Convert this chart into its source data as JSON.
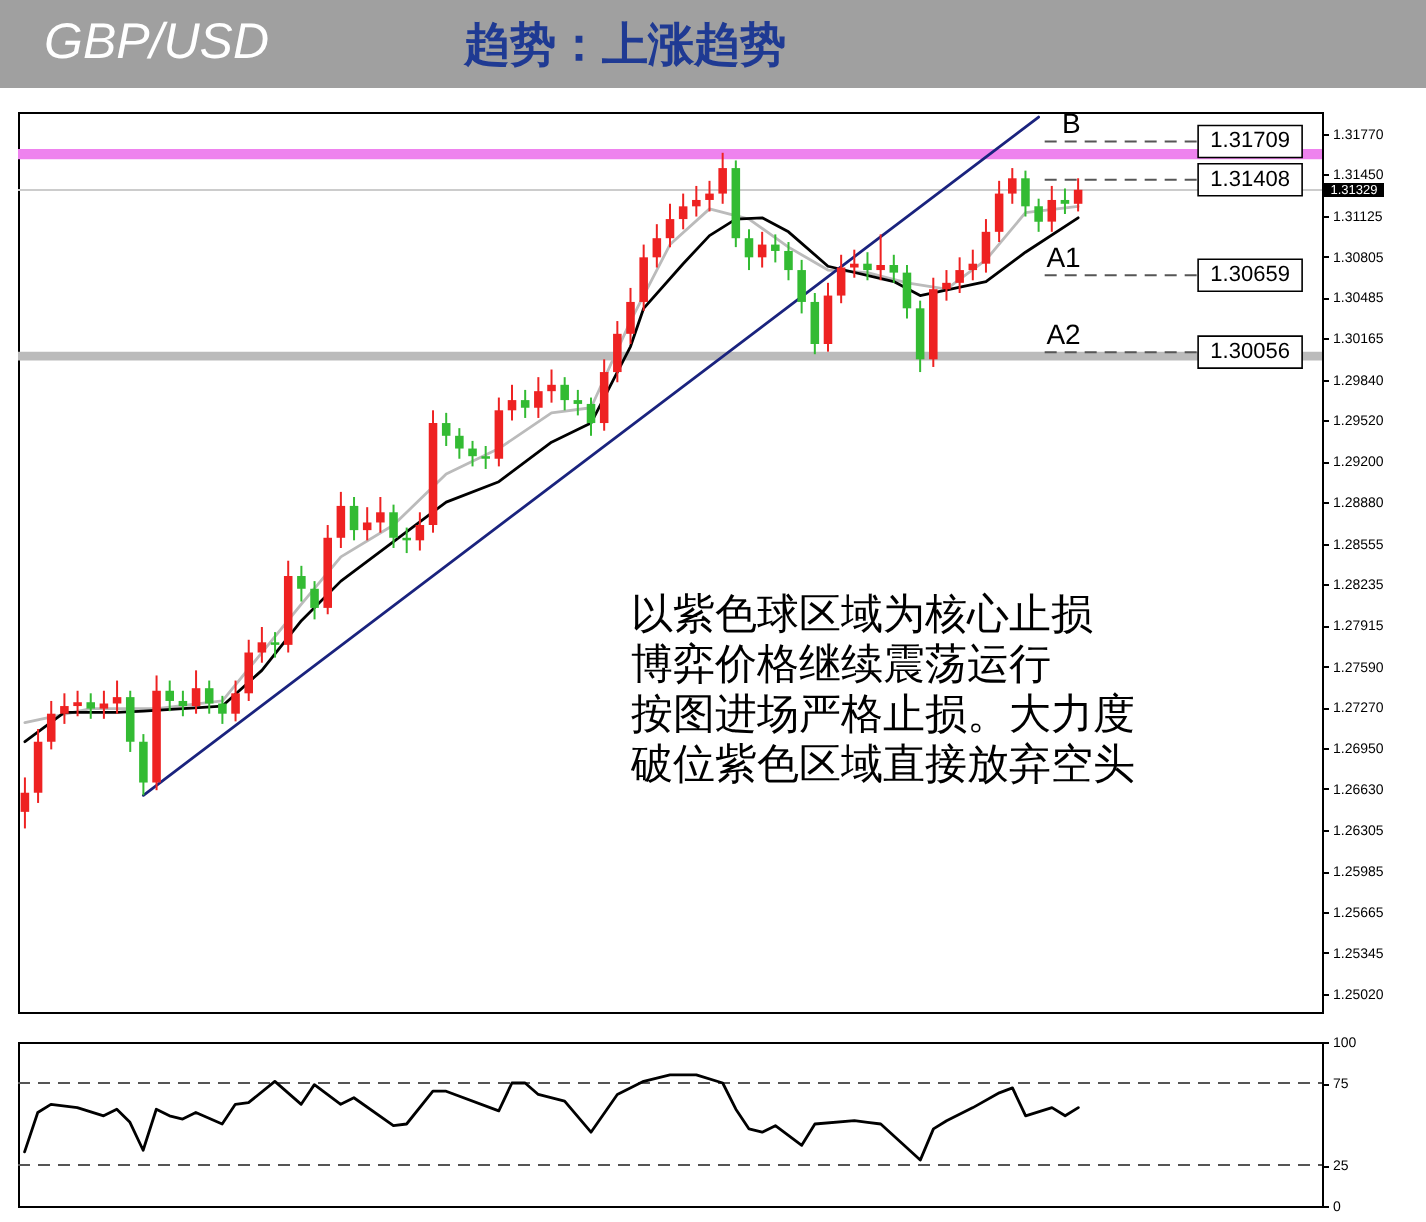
{
  "chart_data": [
    {
      "type": "candlestick",
      "title": "GBP/USD",
      "subtitle": "趋势：上涨趋势",
      "categories": [
        null,
        null,
        null,
        null,
        null,
        null,
        null,
        null,
        null,
        null,
        null,
        null,
        null,
        null,
        null,
        null,
        null,
        null,
        null,
        null,
        null,
        null,
        null,
        null,
        null,
        null,
        null,
        null,
        null,
        null,
        null,
        null,
        null,
        null,
        null,
        null,
        null,
        null,
        null,
        null,
        null,
        null,
        null,
        null,
        null,
        null,
        null,
        null,
        null,
        null,
        null,
        null,
        null,
        null,
        null,
        null,
        null,
        null,
        null,
        null,
        null,
        null,
        null,
        null,
        null,
        null,
        null,
        null,
        null,
        null,
        null,
        null,
        null,
        null,
        null,
        null,
        null,
        null,
        null,
        null,
        null,
        null,
        null,
        null,
        null,
        null,
        null,
        null,
        null,
        null,
        null,
        null,
        null,
        null,
        null,
        null,
        null,
        null,
        null
      ],
      "ohlc": [
        [
          1.2645,
          1.2672,
          1.2632,
          1.266
        ],
        [
          1.266,
          1.271,
          1.2652,
          1.27
        ],
        [
          1.27,
          1.2732,
          1.2694,
          1.2722
        ],
        [
          1.2722,
          1.2738,
          1.2714,
          1.2728
        ],
        [
          1.2728,
          1.274,
          1.272,
          1.2731
        ],
        [
          1.2731,
          1.2738,
          1.2718,
          1.2726
        ],
        [
          1.2726,
          1.274,
          1.2718,
          1.273
        ],
        [
          1.273,
          1.2748,
          1.2722,
          1.2735
        ],
        [
          1.2735,
          1.274,
          1.2692,
          1.27
        ],
        [
          1.27,
          1.2706,
          1.2658,
          1.2668
        ],
        [
          1.2668,
          1.2752,
          1.2662,
          1.274
        ],
        [
          1.274,
          1.2748,
          1.2724,
          1.2732
        ],
        [
          1.2732,
          1.274,
          1.272,
          1.2728
        ],
        [
          1.2728,
          1.2756,
          1.2722,
          1.2742
        ],
        [
          1.2742,
          1.2748,
          1.2722,
          1.273
        ],
        [
          1.273,
          1.2736,
          1.2714,
          1.2722
        ],
        [
          1.2722,
          1.2748,
          1.2716,
          1.2738
        ],
        [
          1.2738,
          1.278,
          1.2732,
          1.277
        ],
        [
          1.277,
          1.279,
          1.2762,
          1.2778
        ],
        [
          1.2778,
          1.2786,
          1.2766,
          1.2776
        ],
        [
          1.2776,
          1.2842,
          1.277,
          1.283
        ],
        [
          1.283,
          1.2838,
          1.281,
          1.282
        ],
        [
          1.282,
          1.2826,
          1.2796,
          1.2805
        ],
        [
          1.2805,
          1.287,
          1.28,
          1.286
        ],
        [
          1.286,
          1.2896,
          1.2852,
          1.2885
        ],
        [
          1.2885,
          1.2892,
          1.2858,
          1.2866
        ],
        [
          1.2866,
          1.2884,
          1.2858,
          1.2872
        ],
        [
          1.2872,
          1.2892,
          1.2864,
          1.288
        ],
        [
          1.288,
          1.2886,
          1.2852,
          1.286
        ],
        [
          1.286,
          1.2868,
          1.2848,
          1.2858
        ],
        [
          1.2858,
          1.288,
          1.285,
          1.287
        ],
        [
          1.287,
          1.296,
          1.2864,
          1.295
        ],
        [
          1.295,
          1.2958,
          1.2932,
          1.294
        ],
        [
          1.294,
          1.2946,
          1.2922,
          1.293
        ],
        [
          1.293,
          1.2936,
          1.2916,
          1.2924
        ],
        [
          1.2924,
          1.2932,
          1.2914,
          1.2922
        ],
        [
          1.2922,
          1.297,
          1.2916,
          1.296
        ],
        [
          1.296,
          1.298,
          1.2952,
          1.2968
        ],
        [
          1.2968,
          1.2976,
          1.2954,
          1.2962
        ],
        [
          1.2962,
          1.2986,
          1.2954,
          1.2975
        ],
        [
          1.2975,
          1.2992,
          1.2966,
          1.298
        ],
        [
          1.298,
          1.2986,
          1.296,
          1.2968
        ],
        [
          1.2968,
          1.2976,
          1.2956,
          1.2965
        ],
        [
          1.2965,
          1.297,
          1.294,
          1.295
        ],
        [
          1.295,
          1.3,
          1.2944,
          1.299
        ],
        [
          1.299,
          1.303,
          1.2982,
          1.302
        ],
        [
          1.302,
          1.3056,
          1.3012,
          1.3045
        ],
        [
          1.3045,
          1.309,
          1.3038,
          1.308
        ],
        [
          1.308,
          1.3106,
          1.3072,
          1.3095
        ],
        [
          1.3095,
          1.3122,
          1.3088,
          1.311
        ],
        [
          1.311,
          1.313,
          1.3102,
          1.312
        ],
        [
          1.312,
          1.3136,
          1.3112,
          1.3125
        ],
        [
          1.3125,
          1.314,
          1.3116,
          1.313
        ],
        [
          1.313,
          1.3162,
          1.3122,
          1.315
        ],
        [
          1.315,
          1.3156,
          1.3088,
          1.3095
        ],
        [
          1.3095,
          1.3102,
          1.307,
          1.308
        ],
        [
          1.308,
          1.31,
          1.3072,
          1.309
        ],
        [
          1.309,
          1.3098,
          1.3076,
          1.3085
        ],
        [
          1.3085,
          1.3092,
          1.3062,
          1.307
        ],
        [
          1.307,
          1.3078,
          1.3036,
          1.3045
        ],
        [
          1.3045,
          1.3052,
          1.3004,
          1.3012
        ],
        [
          1.3012,
          1.306,
          1.3006,
          1.305
        ],
        [
          1.305,
          1.3082,
          1.3044,
          1.3072
        ],
        [
          1.3072,
          1.3086,
          1.3064,
          1.3075
        ],
        [
          1.3075,
          1.3084,
          1.3062,
          1.307
        ],
        [
          1.307,
          1.3098,
          1.3062,
          1.3074
        ],
        [
          1.3074,
          1.3082,
          1.306,
          1.3068
        ],
        [
          1.3068,
          1.3074,
          1.3032,
          1.304
        ],
        [
          1.304,
          1.3046,
          1.299,
          1.3
        ],
        [
          1.3,
          1.3064,
          1.2994,
          1.3055
        ],
        [
          1.3055,
          1.307,
          1.3046,
          1.306
        ],
        [
          1.306,
          1.308,
          1.3052,
          1.307
        ],
        [
          1.307,
          1.3086,
          1.3062,
          1.3075
        ],
        [
          1.3075,
          1.311,
          1.3068,
          1.31
        ],
        [
          1.31,
          1.314,
          1.3092,
          1.313
        ],
        [
          1.313,
          1.315,
          1.3122,
          1.3142
        ],
        [
          1.3142,
          1.3148,
          1.3112,
          1.312
        ],
        [
          1.312,
          1.3126,
          1.31,
          1.3108
        ],
        [
          1.3108,
          1.3136,
          1.31,
          1.3125
        ],
        [
          1.3125,
          1.3134,
          1.3114,
          1.3122
        ],
        [
          1.3122,
          1.3142,
          1.3116,
          1.3133
        ],
        null,
        null,
        null,
        null,
        null,
        null,
        null,
        null,
        null,
        null,
        null,
        null,
        null,
        null,
        null,
        null,
        null,
        null
      ],
      "colors": [
        "#ee2222",
        "#ee2222",
        "#ee2222",
        "#ee2222",
        "#ee2222",
        "#33bb33",
        "#ee2222",
        "#ee2222",
        "#33bb33",
        "#33bb33",
        "#ee2222",
        "#33bb33",
        "#33bb33",
        "#ee2222",
        "#33bb33",
        "#33bb33",
        "#ee2222",
        "#ee2222",
        "#ee2222",
        "#33bb33",
        "#ee2222",
        "#33bb33",
        "#33bb33",
        "#ee2222",
        "#ee2222",
        "#33bb33",
        "#ee2222",
        "#ee2222",
        "#33bb33",
        "#33bb33",
        "#ee2222",
        "#ee2222",
        "#33bb33",
        "#33bb33",
        "#33bb33",
        "#33bb33",
        "#ee2222",
        "#ee2222",
        "#33bb33",
        "#ee2222",
        "#ee2222",
        "#33bb33",
        "#33bb33",
        "#33bb33",
        "#ee2222",
        "#ee2222",
        "#ee2222",
        "#ee2222",
        "#ee2222",
        "#ee2222",
        "#ee2222",
        "#ee2222",
        "#ee2222",
        "#ee2222",
        "#33bb33",
        "#33bb33",
        "#ee2222",
        "#33bb33",
        "#33bb33",
        "#33bb33",
        "#33bb33",
        "#ee2222",
        "#ee2222",
        "#ee2222",
        "#33bb33",
        "#ee2222",
        "#33bb33",
        "#33bb33",
        "#33bb33",
        "#ee2222",
        "#ee2222",
        "#ee2222",
        "#ee2222",
        "#ee2222",
        "#ee2222",
        "#ee2222",
        "#33bb33",
        "#33bb33",
        "#ee2222",
        "#33bb33",
        "#ee2222",
        null,
        null,
        null,
        null,
        null,
        null,
        null,
        null,
        null,
        null,
        null,
        null,
        null,
        null,
        null,
        null,
        null,
        null
      ],
      "series": [
        {
          "type": "line",
          "color": "#bbbbbb",
          "values": [
            1.2715,
            null,
            null,
            null,
            null,
            1.2726,
            null,
            null,
            null,
            null,
            1.2726,
            null,
            null,
            null,
            null,
            1.2732,
            null,
            null,
            1.277,
            null,
            null,
            1.2808,
            null,
            null,
            1.2845,
            null,
            null,
            null,
            1.287,
            null,
            null,
            null,
            1.291,
            null,
            null,
            null,
            1.293,
            null,
            null,
            null,
            1.2958,
            null,
            null,
            1.2962,
            null,
            null,
            1.303,
            null,
            null,
            1.309,
            null,
            null,
            1.3118,
            null,
            null,
            1.311,
            null,
            null,
            1.3088,
            null,
            null,
            1.307,
            null,
            null,
            1.3068,
            null,
            null,
            1.306,
            null,
            null,
            1.3055,
            null,
            null,
            1.3078,
            null,
            null,
            1.3115,
            null,
            null,
            null,
            1.312,
            null,
            null,
            null,
            null,
            null,
            null,
            null,
            null,
            null,
            null,
            null,
            null,
            null,
            null,
            null,
            null,
            null,
            null
          ]
        },
        {
          "type": "line",
          "color": "#000000",
          "values": [
            1.27,
            null,
            null,
            1.2723,
            null,
            null,
            null,
            1.2723,
            null,
            1.2724,
            null,
            null,
            null,
            null,
            null,
            1.2728,
            null,
            null,
            1.2756,
            null,
            null,
            1.2795,
            null,
            null,
            1.2826,
            null,
            null,
            null,
            1.2857,
            null,
            null,
            null,
            1.2888,
            null,
            null,
            null,
            1.2904,
            null,
            null,
            null,
            1.2935,
            null,
            null,
            1.295,
            null,
            null,
            1.301,
            1.304,
            null,
            null,
            1.3075,
            null,
            1.3097,
            null,
            1.311,
            null,
            1.3111,
            null,
            1.31,
            null,
            null,
            1.3073,
            null,
            null,
            null,
            null,
            1.3061,
            null,
            1.305,
            null,
            null,
            null,
            null,
            1.3061,
            null,
            null,
            1.3084,
            null,
            null,
            null,
            1.3111,
            null,
            null,
            null,
            null,
            null,
            null,
            null,
            null,
            null,
            null,
            null,
            null,
            null,
            null,
            null,
            null,
            null,
            null
          ]
        },
        {
          "type": "line",
          "color": "#1a237e",
          "values": [
            null,
            null,
            null,
            null,
            null,
            null,
            null,
            null,
            null,
            1.2658,
            null,
            null,
            null,
            null,
            null,
            null,
            null,
            null,
            null,
            null,
            null,
            null,
            null,
            null,
            null,
            null,
            null,
            null,
            null,
            null,
            null,
            null,
            null,
            null,
            null,
            null,
            null,
            null,
            null,
            null,
            null,
            null,
            null,
            null,
            null,
            null,
            null,
            null,
            null,
            null,
            null,
            null,
            null,
            null,
            null,
            null,
            null,
            null,
            null,
            null,
            null,
            null,
            null,
            null,
            null,
            null,
            null,
            null,
            null,
            null,
            null,
            null,
            null,
            null,
            null,
            null,
            null,
            1.319,
            null,
            null,
            null,
            null,
            null,
            null,
            null,
            null,
            null,
            null,
            null,
            null,
            null,
            null,
            null,
            null,
            null,
            null,
            null,
            null,
            null
          ]
        }
      ],
      "ylim": [
        1.2488,
        1.3194
      ],
      "yticks": [
        {
          "value": 1.3177,
          "label": "1.31770"
        },
        {
          "value": 1.3145,
          "label": "1.31450"
        },
        {
          "value": 1.31125,
          "label": "1.31125"
        },
        {
          "value": 1.30805,
          "label": "1.30805"
        },
        {
          "value": 1.30485,
          "label": "1.30485"
        },
        {
          "value": 1.30165,
          "label": "1.30165"
        },
        {
          "value": 1.2984,
          "label": "1.29840"
        },
        {
          "value": 1.2952,
          "label": "1.29520"
        },
        {
          "value": 1.292,
          "label": "1.29200"
        },
        {
          "value": 1.2888,
          "label": "1.28880"
        },
        {
          "value": 1.28555,
          "label": "1.28555"
        },
        {
          "value": 1.28235,
          "label": "1.28235"
        },
        {
          "value": 1.27915,
          "label": "1.27915"
        },
        {
          "value": 1.2759,
          "label": "1.27590"
        },
        {
          "value": 1.2727,
          "label": "1.27270"
        },
        {
          "value": 1.2695,
          "label": "1.26950"
        },
        {
          "value": 1.2663,
          "label": "1.26630"
        },
        {
          "value": 1.26305,
          "label": "1.26305"
        },
        {
          "value": 1.25985,
          "label": "1.25985"
        },
        {
          "value": 1.25665,
          "label": "1.25665"
        },
        {
          "value": 1.25345,
          "label": "1.25345"
        },
        {
          "value": 1.2502,
          "label": "1.25020"
        }
      ],
      "bands": [
        {
          "axis": "y",
          "from": 1.3157,
          "to": 1.3165,
          "color": "#ee82ee"
        },
        {
          "axis": "y",
          "from": 1.2999,
          "to": 1.3006,
          "color": "#bbbbbb"
        }
      ],
      "ref_lines": [
        {
          "axis": "y",
          "value": 1.31329,
          "label": "1.31329",
          "color": "#cccccc",
          "line_style": "solid"
        },
        {
          "axis": "y",
          "value": 1.31709,
          "label": "1.31709",
          "color": "#555555",
          "line_style": "dashed"
        },
        {
          "axis": "y",
          "value": 1.31408,
          "label": "1.31408",
          "color": "#555555",
          "line_style": "dashed"
        },
        {
          "axis": "y",
          "value": 1.30659,
          "label": "1.30659",
          "color": "#555555",
          "line_style": "dashed"
        },
        {
          "axis": "y",
          "value": 1.30056,
          "label": "1.30056",
          "color": "#555555",
          "line_style": "dashed"
        }
      ],
      "annotations": [
        {
          "text": "B",
          "y": 1.31709
        },
        {
          "text": "A1",
          "y": 1.30659
        },
        {
          "text": "A2",
          "y": 1.30056
        },
        "以紫色球区域为核心止损",
        "博弈价格继续震荡运行",
        "按图进场严格止损。大力度",
        "破位紫色区域直接放弃空头"
      ],
      "tick_labels": "y"
    },
    {
      "type": "line",
      "categories": [
        null,
        null,
        null,
        null,
        null,
        null,
        null,
        null,
        null,
        null,
        null,
        null,
        null,
        null,
        null,
        null,
        null,
        null,
        null,
        null,
        null,
        null,
        null,
        null,
        null,
        null,
        null,
        null,
        null,
        null,
        null,
        null,
        null,
        null,
        null,
        null,
        null,
        null,
        null,
        null,
        null,
        null,
        null,
        null,
        null,
        null,
        null,
        null,
        null,
        null,
        null,
        null,
        null,
        null,
        null,
        null,
        null,
        null,
        null,
        null,
        null,
        null,
        null,
        null,
        null,
        null,
        null,
        null,
        null,
        null,
        null,
        null,
        null,
        null,
        null,
        null,
        null,
        null,
        null,
        null,
        null,
        null,
        null,
        null,
        null,
        null,
        null,
        null,
        null,
        null,
        null,
        null,
        null,
        null,
        null,
        null,
        null,
        null,
        null
      ],
      "series": [
        {
          "type": "line",
          "color": "#000000",
          "values": [
            33,
            57,
            62,
            null,
            60,
            null,
            55,
            59,
            51,
            34,
            59,
            55,
            53,
            57,
            null,
            50,
            62,
            63,
            null,
            76,
            null,
            62,
            74,
            null,
            62,
            66,
            null,
            null,
            49,
            50,
            null,
            70,
            70,
            null,
            null,
            null,
            58,
            75,
            75,
            68,
            null,
            64,
            null,
            45,
            null,
            68,
            null,
            76,
            null,
            80,
            null,
            80,
            null,
            75,
            59,
            47,
            45,
            49,
            null,
            37,
            50,
            null,
            null,
            52,
            51,
            50,
            null,
            null,
            28,
            47,
            52,
            null,
            60,
            null,
            69,
            72,
            55,
            null,
            60,
            55,
            60,
            null,
            null,
            null,
            null,
            null,
            null,
            null,
            null,
            null,
            null,
            null,
            null,
            null,
            null,
            null,
            null,
            null,
            null
          ]
        }
      ],
      "ylim": [
        0,
        100
      ],
      "yticks": [
        100,
        75,
        25,
        0
      ],
      "ref_lines": [
        {
          "axis": "y",
          "value": 75,
          "color": "#555555",
          "line_style": "dashed"
        },
        {
          "axis": "y",
          "value": 25,
          "color": "#555555",
          "line_style": "dashed"
        }
      ],
      "tick_labels": "y"
    }
  ]
}
